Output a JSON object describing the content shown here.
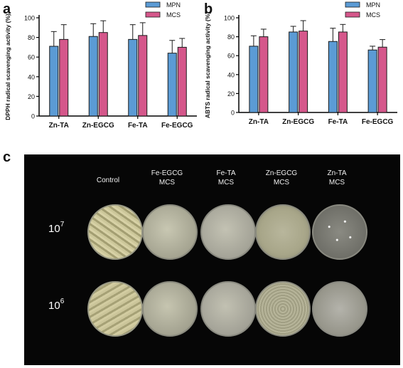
{
  "panels": {
    "a": "a",
    "b": "b",
    "c": "c"
  },
  "colors": {
    "mpn": "#5b9bd5",
    "mcs": "#d5578b"
  },
  "chart_data": [
    {
      "type": "bar",
      "title": "",
      "xlabel": "",
      "ylabel": "DPPH radical scavenging activity (%)",
      "ylim": [
        0,
        100
      ],
      "yticks": [
        0,
        20,
        40,
        60,
        80,
        100
      ],
      "categories": [
        "Zn-TA",
        "Zn-EGCG",
        "Fe-TA",
        "Fe-EGCG"
      ],
      "series": [
        {
          "name": "MPN",
          "color": "#5b9bd5",
          "values": [
            71,
            81,
            78,
            64
          ],
          "errors": [
            15,
            13,
            15,
            13
          ]
        },
        {
          "name": "MCS",
          "color": "#d5578b",
          "values": [
            78,
            85,
            82,
            70
          ],
          "errors": [
            15,
            12,
            13,
            9
          ]
        }
      ],
      "legend": "top-right",
      "grid": false
    },
    {
      "type": "bar",
      "title": "",
      "xlabel": "",
      "ylabel": "ABTS radical scavenging activity (%)",
      "ylim": [
        0,
        100
      ],
      "yticks": [
        0,
        20,
        40,
        60,
        80,
        100
      ],
      "categories": [
        "Zn-TA",
        "Zn-EGCG",
        "Fe-TA",
        "Fe-EGCG"
      ],
      "series": [
        {
          "name": "MPN",
          "color": "#5b9bd5",
          "values": [
            70,
            85,
            75,
            66
          ],
          "errors": [
            11,
            6,
            14,
            4
          ]
        },
        {
          "name": "MCS",
          "color": "#d5578b",
          "values": [
            80,
            86,
            85,
            69
          ],
          "errors": [
            8,
            11,
            8,
            8
          ]
        }
      ],
      "legend": "top-right",
      "grid": false
    }
  ],
  "photo": {
    "columns": [
      {
        "line1": "Control",
        "line2": ""
      },
      {
        "line1": "Fe-EGCG",
        "line2": "MCS"
      },
      {
        "line1": "Fe-TA",
        "line2": "MCS"
      },
      {
        "line1": "Zn-EGCG",
        "line2": "MCS"
      },
      {
        "line1": "Zn-TA",
        "line2": "MCS"
      }
    ],
    "rows": [
      {
        "base": "10",
        "exp": "7"
      },
      {
        "base": "10",
        "exp": "6"
      }
    ]
  }
}
